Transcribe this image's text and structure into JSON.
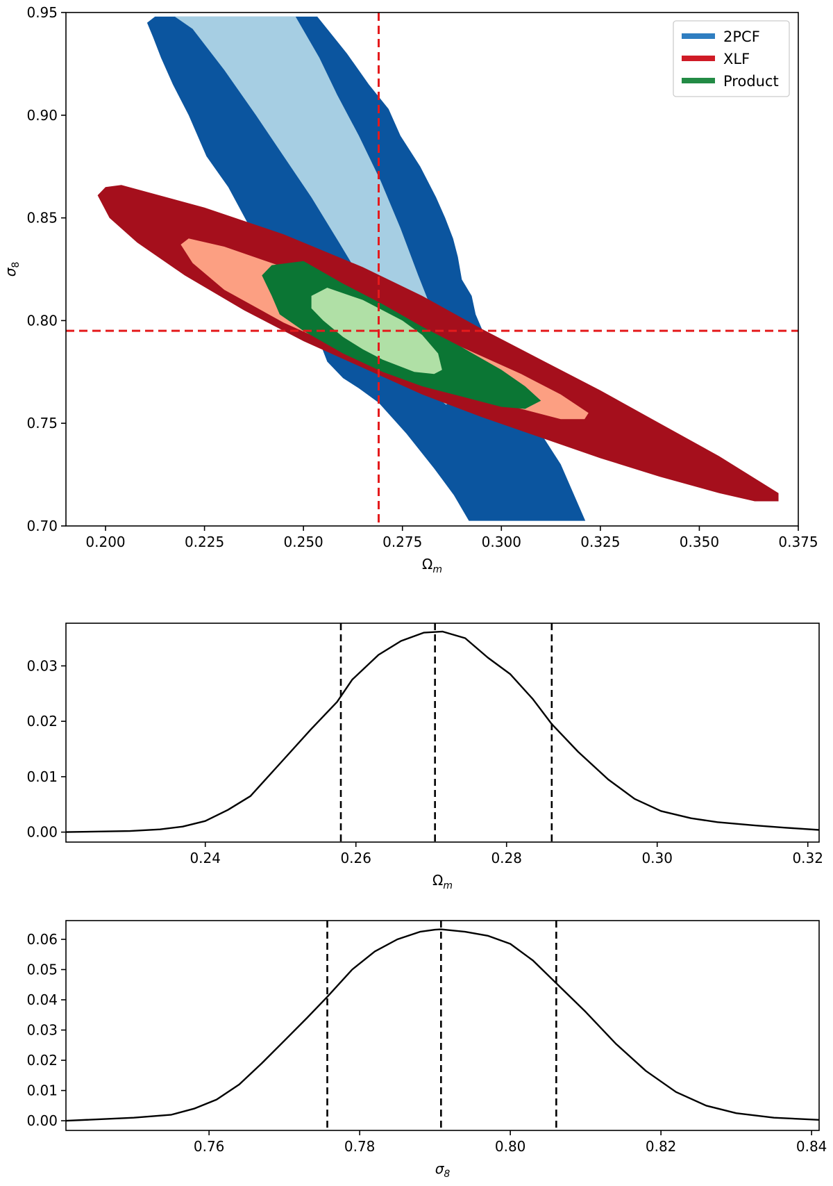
{
  "chart_data": [
    {
      "type": "contour",
      "title": "",
      "xlabel": "Ω",
      "xlabel_sub": "m",
      "ylabel": "σ",
      "ylabel_sub": "8",
      "xlim": [
        0.19,
        0.375
      ],
      "ylim": [
        0.7,
        0.95
      ],
      "xticks": [
        "0.200",
        "0.225",
        "0.250",
        "0.275",
        "0.300",
        "0.325",
        "0.350",
        "0.375"
      ],
      "yticks": [
        "0.70",
        "0.75",
        "0.80",
        "0.85",
        "0.90",
        "0.95"
      ],
      "reference_lines": {
        "x": 0.269,
        "y": 0.795,
        "color": "#e41a1c",
        "style": "dashed"
      },
      "legend": {
        "position": "top-right",
        "entries": [
          "2PCF",
          "XLF",
          "Product"
        ]
      },
      "series": [
        {
          "name": "2PCF",
          "legend_color": "#2f7ec1",
          "levels": [
            {
              "level": "2-sigma",
              "color": "#0b559f",
              "points": [
                [
                  0.2105,
                  0.945
                ],
                [
                  0.2125,
                  0.948
                ],
                [
                  0.232,
                  0.948
                ],
                [
                  0.238,
                  0.948
                ],
                [
                  0.2535,
                  0.948
                ],
                [
                  0.256,
                  0.942
                ],
                [
                  0.261,
                  0.93
                ],
                [
                  0.2665,
                  0.915
                ],
                [
                  0.2715,
                  0.903
                ],
                [
                  0.2745,
                  0.89
                ],
                [
                  0.2795,
                  0.875
                ],
                [
                  0.2835,
                  0.86
                ],
                [
                  0.2858,
                  0.85
                ],
                [
                  0.2878,
                  0.84
                ],
                [
                  0.289,
                  0.831
                ],
                [
                  0.29,
                  0.82
                ],
                [
                  0.2925,
                  0.812
                ],
                [
                  0.2935,
                  0.803
                ],
                [
                  0.2955,
                  0.794
                ],
                [
                  0.3,
                  0.785
                ],
                [
                  0.3035,
                  0.772
                ],
                [
                  0.3065,
                  0.758
                ],
                [
                  0.31,
                  0.745
                ],
                [
                  0.315,
                  0.73
                ],
                [
                  0.3212,
                  0.7025
                ],
                [
                  0.2918,
                  0.7025
                ],
                [
                  0.288,
                  0.715
                ],
                [
                  0.283,
                  0.728
                ],
                [
                  0.276,
                  0.745
                ],
                [
                  0.269,
                  0.76
                ],
                [
                  0.264,
                  0.767
                ],
                [
                  0.26,
                  0.772
                ],
                [
                  0.256,
                  0.78
                ],
                [
                  0.254,
                  0.79
                ],
                [
                  0.248,
                  0.805
                ],
                [
                  0.243,
                  0.82
                ],
                [
                  0.238,
                  0.84
                ],
                [
                  0.231,
                  0.865
                ],
                [
                  0.2255,
                  0.88
                ],
                [
                  0.221,
                  0.9
                ],
                [
                  0.217,
                  0.915
                ],
                [
                  0.214,
                  0.928
                ],
                [
                  0.212,
                  0.938
                ]
              ]
            },
            {
              "level": "1-sigma",
              "color": "#a6cee3",
              "points": [
                [
                  0.2175,
                  0.948
                ],
                [
                  0.248,
                  0.948
                ],
                [
                  0.254,
                  0.928
                ],
                [
                  0.2585,
                  0.91
                ],
                [
                  0.264,
                  0.89
                ],
                [
                  0.2695,
                  0.868
                ],
                [
                  0.2745,
                  0.845
                ],
                [
                  0.279,
                  0.822
                ],
                [
                  0.2835,
                  0.8
                ],
                [
                  0.287,
                  0.782
                ],
                [
                  0.289,
                  0.77
                ],
                [
                  0.2885,
                  0.762
                ],
                [
                  0.286,
                  0.759
                ],
                [
                  0.283,
                  0.764
                ],
                [
                  0.279,
                  0.775
                ],
                [
                  0.274,
                  0.79
                ],
                [
                  0.269,
                  0.805
                ],
                [
                  0.264,
                  0.822
                ],
                [
                  0.259,
                  0.838
                ],
                [
                  0.252,
                  0.86
                ],
                [
                  0.245,
                  0.88
                ],
                [
                  0.238,
                  0.9
                ],
                [
                  0.23,
                  0.922
                ],
                [
                  0.222,
                  0.942
                ]
              ]
            }
          ]
        },
        {
          "name": "XLF",
          "legend_color": "#cf1b26",
          "levels": [
            {
              "level": "2-sigma",
              "color": "#a50f1c",
              "points": [
                [
                  0.198,
                  0.861
                ],
                [
                  0.2,
                  0.865
                ],
                [
                  0.204,
                  0.866
                ],
                [
                  0.225,
                  0.855
                ],
                [
                  0.245,
                  0.842
                ],
                [
                  0.265,
                  0.826
                ],
                [
                  0.28,
                  0.812
                ],
                [
                  0.295,
                  0.796
                ],
                [
                  0.31,
                  0.781
                ],
                [
                  0.325,
                  0.766
                ],
                [
                  0.34,
                  0.75
                ],
                [
                  0.355,
                  0.734
                ],
                [
                  0.365,
                  0.722
                ],
                [
                  0.37,
                  0.716
                ],
                [
                  0.37,
                  0.712
                ],
                [
                  0.364,
                  0.712
                ],
                [
                  0.355,
                  0.716
                ],
                [
                  0.34,
                  0.724
                ],
                [
                  0.325,
                  0.733
                ],
                [
                  0.31,
                  0.743
                ],
                [
                  0.295,
                  0.753
                ],
                [
                  0.28,
                  0.764
                ],
                [
                  0.265,
                  0.777
                ],
                [
                  0.25,
                  0.79
                ],
                [
                  0.235,
                  0.805
                ],
                [
                  0.22,
                  0.822
                ],
                [
                  0.208,
                  0.838
                ],
                [
                  0.201,
                  0.85
                ]
              ]
            },
            {
              "level": "1-sigma",
              "color": "#fc9f82",
              "points": [
                [
                  0.219,
                  0.837
                ],
                [
                  0.221,
                  0.84
                ],
                [
                  0.23,
                  0.836
                ],
                [
                  0.245,
                  0.826
                ],
                [
                  0.26,
                  0.813
                ],
                [
                  0.275,
                  0.8
                ],
                [
                  0.29,
                  0.787
                ],
                [
                  0.305,
                  0.774
                ],
                [
                  0.315,
                  0.764
                ],
                [
                  0.322,
                  0.755
                ],
                [
                  0.321,
                  0.752
                ],
                [
                  0.315,
                  0.752
                ],
                [
                  0.305,
                  0.757
                ],
                [
                  0.29,
                  0.765
                ],
                [
                  0.275,
                  0.775
                ],
                [
                  0.26,
                  0.786
                ],
                [
                  0.245,
                  0.799
                ],
                [
                  0.23,
                  0.815
                ],
                [
                  0.222,
                  0.828
                ]
              ]
            }
          ]
        },
        {
          "name": "Product",
          "legend_color": "#238b45",
          "levels": [
            {
              "level": "2-sigma",
              "color": "#0b7634",
              "points": [
                [
                  0.2395,
                  0.822
                ],
                [
                  0.242,
                  0.827
                ],
                [
                  0.25,
                  0.829
                ],
                [
                  0.26,
                  0.818
                ],
                [
                  0.27,
                  0.808
                ],
                [
                  0.28,
                  0.797
                ],
                [
                  0.29,
                  0.787
                ],
                [
                  0.3,
                  0.776
                ],
                [
                  0.306,
                  0.768
                ],
                [
                  0.31,
                  0.761
                ],
                [
                  0.306,
                  0.757
                ],
                [
                  0.3,
                  0.758
                ],
                [
                  0.29,
                  0.763
                ],
                [
                  0.28,
                  0.768
                ],
                [
                  0.27,
                  0.775
                ],
                [
                  0.26,
                  0.784
                ],
                [
                  0.25,
                  0.795
                ],
                [
                  0.244,
                  0.803
                ],
                [
                  0.242,
                  0.812
                ]
              ]
            },
            {
              "level": "1-sigma",
              "color": "#b0e0a6",
              "points": [
                [
                  0.252,
                  0.812
                ],
                [
                  0.256,
                  0.816
                ],
                [
                  0.265,
                  0.81
                ],
                [
                  0.275,
                  0.8
                ],
                [
                  0.28,
                  0.793
                ],
                [
                  0.284,
                  0.784
                ],
                [
                  0.285,
                  0.776
                ],
                [
                  0.283,
                  0.774
                ],
                [
                  0.278,
                  0.775
                ],
                [
                  0.27,
                  0.781
                ],
                [
                  0.265,
                  0.786
                ],
                [
                  0.26,
                  0.792
                ],
                [
                  0.255,
                  0.8
                ],
                [
                  0.252,
                  0.806
                ]
              ]
            }
          ]
        }
      ]
    },
    {
      "type": "line",
      "xlabel": "Ω",
      "xlabel_sub": "m",
      "ylabel": "",
      "xlim": [
        0.2215,
        0.3215
      ],
      "ylim": [
        -0.0018,
        0.0377
      ],
      "xticks": [
        "0.24",
        "0.26",
        "0.28",
        "0.30",
        "0.32"
      ],
      "yticks": [
        "0.00",
        "0.01",
        "0.02",
        "0.03"
      ],
      "vlines": [
        0.258,
        0.2705,
        0.286
      ],
      "x": [
        0.2215,
        0.23,
        0.234,
        0.237,
        0.24,
        0.243,
        0.246,
        0.25,
        0.254,
        0.2575,
        0.2595,
        0.263,
        0.266,
        0.269,
        0.2715,
        0.2745,
        0.2775,
        0.2805,
        0.2835,
        0.286,
        0.2895,
        0.2935,
        0.297,
        0.3005,
        0.3045,
        0.308,
        0.313,
        0.317,
        0.3215
      ],
      "y": [
        0.0,
        0.0002,
        0.0005,
        0.001,
        0.002,
        0.004,
        0.0065,
        0.0125,
        0.0185,
        0.0235,
        0.0275,
        0.032,
        0.0345,
        0.036,
        0.0362,
        0.035,
        0.0315,
        0.0285,
        0.024,
        0.0195,
        0.0145,
        0.0095,
        0.006,
        0.0038,
        0.0025,
        0.0018,
        0.0012,
        0.0008,
        0.0004
      ]
    },
    {
      "type": "line",
      "xlabel": "σ",
      "xlabel_sub": "8",
      "ylabel": "",
      "xlim": [
        0.741,
        0.841
      ],
      "ylim": [
        -0.0032,
        0.0662
      ],
      "xticks": [
        "0.76",
        "0.78",
        "0.80",
        "0.82",
        "0.84"
      ],
      "yticks": [
        "0.00",
        "0.01",
        "0.02",
        "0.03",
        "0.04",
        "0.05",
        "0.06"
      ],
      "vlines": [
        0.7757,
        0.7908,
        0.8061
      ],
      "x": [
        0.741,
        0.75,
        0.755,
        0.758,
        0.761,
        0.764,
        0.767,
        0.77,
        0.773,
        0.7757,
        0.779,
        0.782,
        0.785,
        0.788,
        0.79,
        0.7908,
        0.794,
        0.797,
        0.8,
        0.803,
        0.8061,
        0.81,
        0.814,
        0.818,
        0.822,
        0.826,
        0.83,
        0.835,
        0.841
      ],
      "y": [
        0.0,
        0.001,
        0.002,
        0.004,
        0.007,
        0.012,
        0.019,
        0.0265,
        0.034,
        0.041,
        0.05,
        0.056,
        0.06,
        0.0625,
        0.0632,
        0.0633,
        0.0625,
        0.0612,
        0.0585,
        0.053,
        0.0455,
        0.036,
        0.0255,
        0.0165,
        0.0095,
        0.005,
        0.0025,
        0.001,
        0.0003
      ]
    }
  ]
}
